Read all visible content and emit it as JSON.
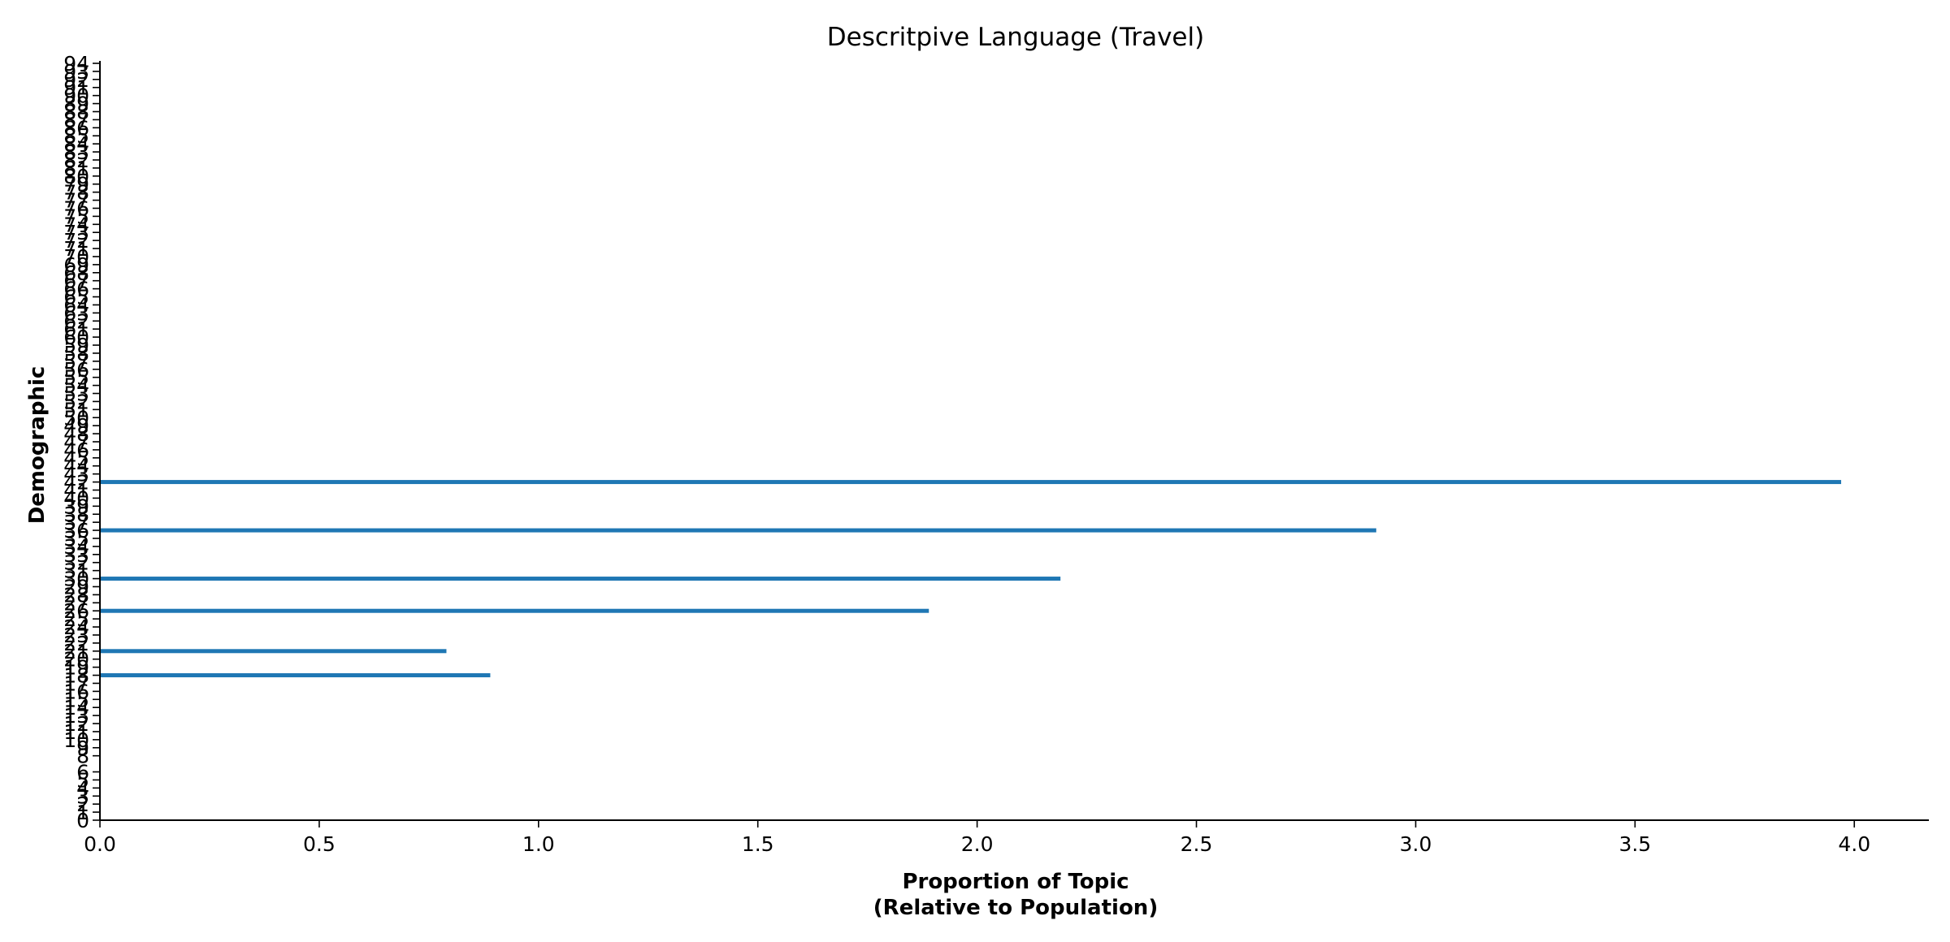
{
  "chart_data": {
    "type": "bar",
    "orientation": "horizontal",
    "title": "Descritpive Language (Travel)",
    "xlabel_line1": "Proportion of Topic",
    "xlabel_line2": "(Relative to Population)",
    "ylabel": "Demographic",
    "xlim": [
      0,
      4.17
    ],
    "x_ticks": [
      "0.0",
      "0.5",
      "1.0",
      "1.5",
      "2.0",
      "2.5",
      "3.0",
      "3.5",
      "4.0"
    ],
    "ylim": [
      0,
      94
    ],
    "y_ticks": [
      0,
      1,
      2,
      3,
      4,
      5,
      6,
      8,
      9,
      10,
      11,
      12,
      13,
      14,
      15,
      16,
      17,
      18,
      19,
      20,
      21,
      22,
      23,
      24,
      25,
      26,
      27,
      28,
      29,
      30,
      31,
      32,
      33,
      34,
      35,
      36,
      37,
      38,
      39,
      40,
      41,
      42,
      43,
      44,
      45,
      46,
      47,
      48,
      49,
      50,
      51,
      52,
      53,
      54,
      55,
      56,
      57,
      58,
      59,
      60,
      61,
      62,
      63,
      64,
      65,
      66,
      67,
      68,
      69,
      70,
      71,
      72,
      73,
      74,
      75,
      76,
      77,
      78,
      79,
      80,
      81,
      82,
      83,
      84,
      85,
      86,
      87,
      88,
      89,
      90,
      91,
      92,
      93,
      94
    ],
    "bar_color": "#1f77b4",
    "grid": false,
    "categories": [
      18,
      21,
      26,
      30,
      36,
      42
    ],
    "values": [
      0.89,
      0.79,
      1.89,
      2.19,
      2.91,
      3.97
    ]
  }
}
